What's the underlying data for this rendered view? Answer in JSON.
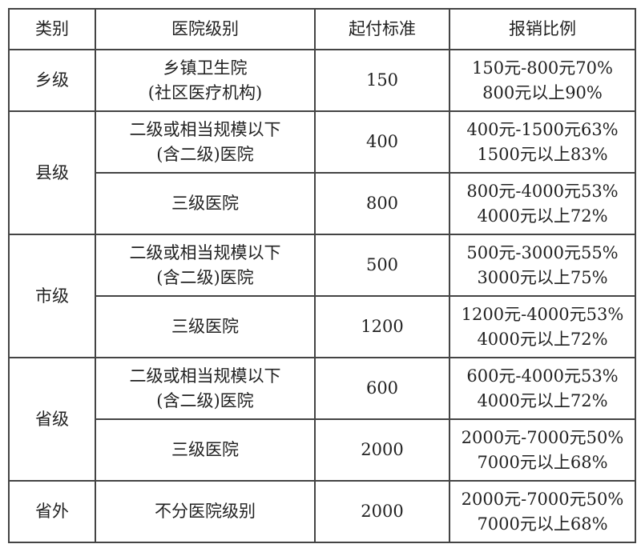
{
  "headers": [
    "类别",
    "医院级别",
    "起付标准",
    "报销比例"
  ],
  "groups": [
    {
      "category": "乡级",
      "rows": [
        {
          "hospital": [
            "乡镇卫生院",
            "(社区医疗机构)"
          ],
          "deductible": "150",
          "ratio": [
            "150元-800元70%",
            "800元以上90%"
          ]
        }
      ]
    },
    {
      "category": "县级",
      "rows": [
        {
          "hospital": [
            "二级或相当规模以下",
            "(含二级)医院"
          ],
          "deductible": "400",
          "ratio": [
            "400元-1500元63%",
            "1500元以上83%"
          ]
        },
        {
          "hospital": [
            "三级医院"
          ],
          "deductible": "800",
          "ratio": [
            "800元-4000元53%",
            "4000元以上72%"
          ]
        }
      ]
    },
    {
      "category": "市级",
      "rows": [
        {
          "hospital": [
            "二级或相当规模以下",
            "(含二级)医院"
          ],
          "deductible": "500",
          "ratio": [
            "500元-3000元55%",
            "3000元以上75%"
          ]
        },
        {
          "hospital": [
            "三级医院"
          ],
          "deductible": "1200",
          "ratio": [
            "1200元-4000元53%",
            "4000元以上72%"
          ]
        }
      ]
    },
    {
      "category": "省级",
      "rows": [
        {
          "hospital": [
            "二级或相当规模以下",
            "(含二级)医院"
          ],
          "deductible": "600",
          "ratio": [
            "600元-4000元53%",
            "4000元以上72%"
          ]
        },
        {
          "hospital": [
            "三级医院"
          ],
          "deductible": "2000",
          "ratio": [
            "2000元-7000元50%",
            "7000元以上68%"
          ]
        }
      ]
    },
    {
      "category": "省外",
      "rows": [
        {
          "hospital": [
            "不分医院级别"
          ],
          "deductible": "2000",
          "ratio": [
            "2000元-7000元50%",
            "7000元以上68%"
          ]
        }
      ]
    }
  ]
}
